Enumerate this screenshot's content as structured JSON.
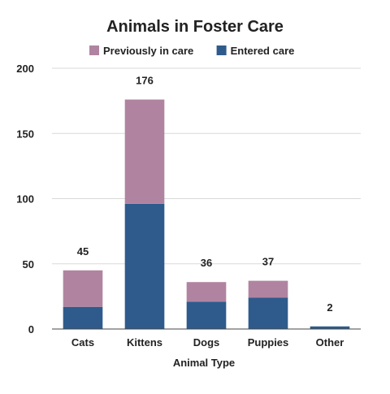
{
  "chart_data": {
    "type": "bar",
    "stacked": true,
    "title": "Animals in Foster Care",
    "xlabel": "Animal Type",
    "ylabel": "",
    "categories": [
      "Cats",
      "Kittens",
      "Dogs",
      "Puppies",
      "Other"
    ],
    "series": [
      {
        "name": "Entered care",
        "color": "#2e5b8c",
        "values": [
          17,
          96,
          21,
          24,
          2
        ]
      },
      {
        "name": "Previously in care",
        "color": "#b084a1",
        "values": [
          28,
          80,
          15,
          13,
          0
        ]
      }
    ],
    "legend_order": [
      "Previously in care",
      "Entered care"
    ],
    "totals": [
      "45",
      "176",
      "36",
      "37",
      "2"
    ],
    "ylim": [
      0,
      200
    ],
    "yticks": [
      "0",
      "50",
      "100",
      "150",
      "200"
    ],
    "grid": true,
    "legend_position": "top"
  }
}
